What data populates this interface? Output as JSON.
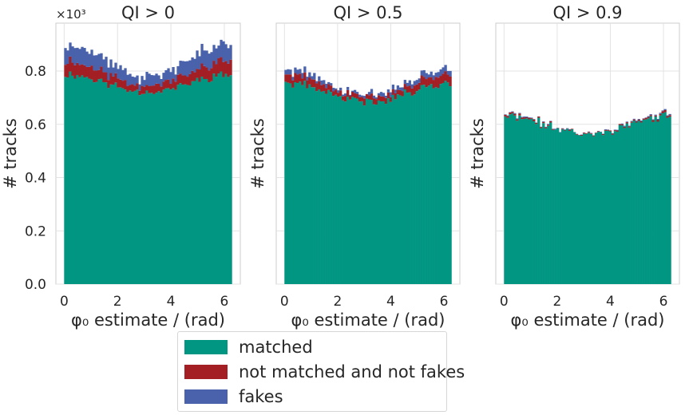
{
  "colors": {
    "matched": "#009682",
    "not_matched_not_fake": "#a31f24",
    "fakes": "#4962ab"
  },
  "chart_data": [
    {
      "type": "bar",
      "stacked": true,
      "title": "QI > 0",
      "xlabel": "φ₀ estimate / (rad)",
      "ylabel": "# tracks",
      "y_scale_label": "×10³",
      "xlim": [
        -0.31,
        6.6
      ],
      "ylim": [
        0,
        0.98
      ],
      "xticks": [
        "0",
        "2",
        "4",
        "6"
      ],
      "yticks": [
        "0.0",
        "0.2",
        "0.4",
        "0.6",
        "0.8"
      ],
      "bins": {
        "start": 0,
        "end": 6.2832,
        "count": 70
      },
      "grid": true,
      "series": [
        {
          "name": "matched",
          "level": 0.755,
          "amplitude": 0.033,
          "noise": 0.02,
          "seed": 11
        },
        {
          "name": "not matched and not fakes",
          "level": 0.038,
          "amplitude": 0.012,
          "noise": 0.012,
          "seed": 23
        },
        {
          "name": "fakes",
          "level": 0.05,
          "amplitude": 0.015,
          "noise": 0.018,
          "seed": 37
        }
      ]
    },
    {
      "type": "bar",
      "stacked": true,
      "title": "QI > 0.5",
      "xlabel": "φ₀ estimate / (rad)",
      "ylabel": "# tracks",
      "xlim": [
        -0.31,
        6.6
      ],
      "ylim": [
        0,
        0.98
      ],
      "xticks": [
        "0",
        "2",
        "4",
        "6"
      ],
      "bins": {
        "start": 0,
        "end": 6.2832,
        "count": 70
      },
      "grid": true,
      "series": [
        {
          "name": "matched",
          "level": 0.72,
          "amplitude": 0.035,
          "noise": 0.02,
          "seed": 41
        },
        {
          "name": "not matched and not fakes",
          "level": 0.026,
          "amplitude": 0.008,
          "noise": 0.01,
          "seed": 53
        },
        {
          "name": "fakes",
          "level": 0.015,
          "amplitude": 0.006,
          "noise": 0.01,
          "seed": 67
        }
      ]
    },
    {
      "type": "bar",
      "stacked": true,
      "title": "QI > 0.9",
      "xlabel": "φ₀ estimate / (rad)",
      "ylabel": "# tracks",
      "xlim": [
        -0.31,
        6.6
      ],
      "ylim": [
        0,
        0.98
      ],
      "xticks": [
        "0",
        "2",
        "4",
        "6"
      ],
      "bins": {
        "start": 0,
        "end": 6.2832,
        "count": 70
      },
      "grid": true,
      "series": [
        {
          "name": "matched",
          "level": 0.598,
          "amplitude": 0.032,
          "noise": 0.02,
          "seed": 71
        },
        {
          "name": "not matched and not fakes",
          "level": 0.004,
          "amplitude": 0.002,
          "noise": 0.003,
          "seed": 83
        },
        {
          "name": "fakes",
          "level": 0.002,
          "amplitude": 0.001,
          "noise": 0.002,
          "seed": 97
        }
      ]
    }
  ],
  "legend": {
    "placement": "bottom-center",
    "entries": [
      {
        "label": "matched",
        "color_key": "matched"
      },
      {
        "label": "not matched and not fakes",
        "color_key": "not_matched_not_fake"
      },
      {
        "label": "fakes",
        "color_key": "fakes"
      }
    ]
  }
}
